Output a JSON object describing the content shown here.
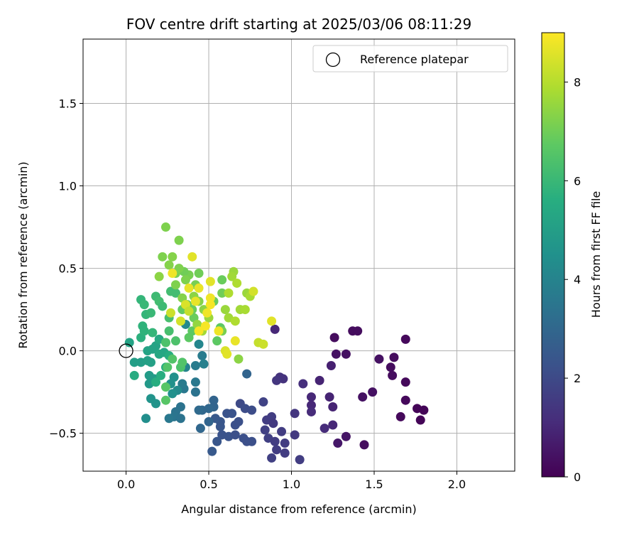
{
  "chart_data": {
    "type": "scatter",
    "title": "FOV centre drift starting at 2025/03/06 08:11:29",
    "xlabel": "Angular distance from reference (arcmin)",
    "ylabel": "Rotation from reference (arcmin)",
    "xlim": [
      -0.26,
      2.35
    ],
    "ylim": [
      -0.73,
      1.89
    ],
    "xticks": [
      0.0,
      0.5,
      1.0,
      1.5,
      2.0
    ],
    "xtick_labels": [
      "0.0",
      "0.5",
      "1.0",
      "1.5",
      "2.0"
    ],
    "yticks": [
      -0.5,
      0.0,
      0.5,
      1.0,
      1.5
    ],
    "ytick_labels": [
      "−0.5",
      "0.0",
      "0.5",
      "1.0",
      "1.5"
    ],
    "grid": true,
    "legend": {
      "position": "top-right",
      "entries": [
        "Reference platepar"
      ]
    },
    "reference_point": {
      "x": 0.0,
      "y": 0.0,
      "label": "Reference platepar"
    },
    "colorbar": {
      "label": "Hours from first FF file",
      "range": [
        0,
        9
      ],
      "ticks": [
        0,
        2,
        4,
        6,
        8
      ],
      "tick_labels": [
        "0",
        "2",
        "4",
        "6",
        "8"
      ],
      "colormap": "viridis"
    },
    "points": [
      {
        "x": 1.26,
        "y": 0.08,
        "t": 0.3
      },
      {
        "x": 1.37,
        "y": 0.12,
        "t": 0.3
      },
      {
        "x": 1.4,
        "y": 0.12,
        "t": 0.3
      },
      {
        "x": 1.69,
        "y": 0.07,
        "t": 0.2
      },
      {
        "x": 1.27,
        "y": -0.02,
        "t": 0.4
      },
      {
        "x": 1.33,
        "y": -0.02,
        "t": 0.4
      },
      {
        "x": 1.53,
        "y": -0.05,
        "t": 0.4
      },
      {
        "x": 1.62,
        "y": -0.04,
        "t": 0.3
      },
      {
        "x": 1.6,
        "y": -0.1,
        "t": 0.3
      },
      {
        "x": 1.61,
        "y": -0.15,
        "t": 0.3
      },
      {
        "x": 1.69,
        "y": -0.19,
        "t": 0.2
      },
      {
        "x": 1.49,
        "y": -0.25,
        "t": 0.4
      },
      {
        "x": 1.43,
        "y": -0.28,
        "t": 0.4
      },
      {
        "x": 1.69,
        "y": -0.3,
        "t": 0.2
      },
      {
        "x": 1.76,
        "y": -0.35,
        "t": 0.1
      },
      {
        "x": 1.8,
        "y": -0.36,
        "t": 0.1
      },
      {
        "x": 1.66,
        "y": -0.4,
        "t": 0.2
      },
      {
        "x": 1.78,
        "y": -0.42,
        "t": 0.1
      },
      {
        "x": 1.44,
        "y": -0.57,
        "t": 0.3
      },
      {
        "x": 1.33,
        "y": -0.52,
        "t": 0.5
      },
      {
        "x": 1.28,
        "y": -0.56,
        "t": 0.6
      },
      {
        "x": 1.24,
        "y": -0.09,
        "t": 0.8
      },
      {
        "x": 0.9,
        "y": 0.13,
        "t": 1.0
      },
      {
        "x": 1.17,
        "y": -0.18,
        "t": 0.9
      },
      {
        "x": 1.23,
        "y": -0.28,
        "t": 0.9
      },
      {
        "x": 1.25,
        "y": -0.34,
        "t": 0.9
      },
      {
        "x": 1.12,
        "y": -0.28,
        "t": 1.0
      },
      {
        "x": 1.12,
        "y": -0.33,
        "t": 1.0
      },
      {
        "x": 1.12,
        "y": -0.37,
        "t": 1.1
      },
      {
        "x": 1.25,
        "y": -0.45,
        "t": 1.0
      },
      {
        "x": 1.2,
        "y": -0.47,
        "t": 1.1
      },
      {
        "x": 1.07,
        "y": -0.2,
        "t": 1.2
      },
      {
        "x": 0.93,
        "y": -0.16,
        "t": 1.3
      },
      {
        "x": 0.95,
        "y": -0.17,
        "t": 1.3
      },
      {
        "x": 0.91,
        "y": -0.18,
        "t": 1.4
      },
      {
        "x": 1.02,
        "y": -0.38,
        "t": 1.4
      },
      {
        "x": 0.85,
        "y": -0.42,
        "t": 1.6
      },
      {
        "x": 0.88,
        "y": -0.4,
        "t": 1.6
      },
      {
        "x": 0.89,
        "y": -0.44,
        "t": 1.5
      },
      {
        "x": 0.94,
        "y": -0.49,
        "t": 1.6
      },
      {
        "x": 0.84,
        "y": -0.48,
        "t": 1.7
      },
      {
        "x": 0.86,
        "y": -0.53,
        "t": 1.7
      },
      {
        "x": 0.9,
        "y": -0.55,
        "t": 1.6
      },
      {
        "x": 0.91,
        "y": -0.6,
        "t": 1.6
      },
      {
        "x": 0.96,
        "y": -0.56,
        "t": 1.6
      },
      {
        "x": 0.96,
        "y": -0.62,
        "t": 1.6
      },
      {
        "x": 1.02,
        "y": -0.51,
        "t": 1.5
      },
      {
        "x": 0.88,
        "y": -0.65,
        "t": 1.7
      },
      {
        "x": 1.05,
        "y": -0.66,
        "t": 1.6
      },
      {
        "x": 0.83,
        "y": -0.31,
        "t": 1.8
      },
      {
        "x": 0.69,
        "y": -0.32,
        "t": 2.0
      },
      {
        "x": 0.72,
        "y": -0.35,
        "t": 2.1
      },
      {
        "x": 0.76,
        "y": -0.36,
        "t": 2.1
      },
      {
        "x": 0.64,
        "y": -0.38,
        "t": 2.3
      },
      {
        "x": 0.61,
        "y": -0.38,
        "t": 2.3
      },
      {
        "x": 0.66,
        "y": -0.45,
        "t": 2.2
      },
      {
        "x": 0.68,
        "y": -0.43,
        "t": 2.2
      },
      {
        "x": 0.57,
        "y": -0.43,
        "t": 2.4
      },
      {
        "x": 0.57,
        "y": -0.46,
        "t": 2.4
      },
      {
        "x": 0.54,
        "y": -0.41,
        "t": 2.5
      },
      {
        "x": 0.58,
        "y": -0.51,
        "t": 2.3
      },
      {
        "x": 0.62,
        "y": -0.52,
        "t": 2.3
      },
      {
        "x": 0.66,
        "y": -0.51,
        "t": 2.2
      },
      {
        "x": 0.71,
        "y": -0.53,
        "t": 2.2
      },
      {
        "x": 0.73,
        "y": -0.55,
        "t": 2.2
      },
      {
        "x": 0.76,
        "y": -0.55,
        "t": 2.2
      },
      {
        "x": 0.55,
        "y": -0.55,
        "t": 2.4
      },
      {
        "x": 0.52,
        "y": -0.61,
        "t": 2.5
      },
      {
        "x": 0.73,
        "y": -0.14,
        "t": 2.9
      },
      {
        "x": 0.53,
        "y": -0.3,
        "t": 2.9
      },
      {
        "x": 0.53,
        "y": -0.34,
        "t": 2.9
      },
      {
        "x": 0.46,
        "y": -0.36,
        "t": 3.0
      },
      {
        "x": 0.5,
        "y": -0.35,
        "t": 3.0
      },
      {
        "x": 0.44,
        "y": -0.36,
        "t": 3.1
      },
      {
        "x": 0.5,
        "y": -0.43,
        "t": 2.9
      },
      {
        "x": 0.45,
        "y": -0.47,
        "t": 3.0
      },
      {
        "x": 0.33,
        "y": -0.34,
        "t": 3.4
      },
      {
        "x": 0.3,
        "y": -0.37,
        "t": 3.4
      },
      {
        "x": 0.29,
        "y": -0.4,
        "t": 3.5
      },
      {
        "x": 0.33,
        "y": -0.41,
        "t": 3.4
      },
      {
        "x": 0.26,
        "y": -0.41,
        "t": 3.6
      },
      {
        "x": 0.42,
        "y": -0.25,
        "t": 3.4
      },
      {
        "x": 0.35,
        "y": -0.23,
        "t": 3.6
      },
      {
        "x": 0.34,
        "y": -0.2,
        "t": 3.7
      },
      {
        "x": 0.42,
        "y": -0.19,
        "t": 3.6
      },
      {
        "x": 0.42,
        "y": -0.09,
        "t": 3.7
      },
      {
        "x": 0.46,
        "y": -0.03,
        "t": 3.7
      },
      {
        "x": 0.47,
        "y": -0.08,
        "t": 3.9
      },
      {
        "x": 0.36,
        "y": -0.1,
        "t": 4.0
      },
      {
        "x": 0.44,
        "y": 0.04,
        "t": 4.1
      },
      {
        "x": 0.36,
        "y": 0.16,
        "t": 4.2
      },
      {
        "x": 0.29,
        "y": -0.16,
        "t": 4.5
      },
      {
        "x": 0.31,
        "y": -0.24,
        "t": 4.3
      },
      {
        "x": 0.27,
        "y": -0.2,
        "t": 4.5
      },
      {
        "x": 0.28,
        "y": -0.26,
        "t": 4.5
      },
      {
        "x": 0.12,
        "y": -0.41,
        "t": 4.4
      },
      {
        "x": 0.15,
        "y": -0.29,
        "t": 4.6
      },
      {
        "x": 0.18,
        "y": -0.32,
        "t": 4.6
      },
      {
        "x": 0.14,
        "y": -0.2,
        "t": 4.8
      },
      {
        "x": 0.17,
        "y": -0.17,
        "t": 4.9
      },
      {
        "x": 0.14,
        "y": -0.15,
        "t": 4.9
      },
      {
        "x": 0.05,
        "y": -0.07,
        "t": 5.0
      },
      {
        "x": 0.09,
        "y": -0.07,
        "t": 5.0
      },
      {
        "x": 0.13,
        "y": -0.06,
        "t": 5.1
      },
      {
        "x": 0.15,
        "y": -0.07,
        "t": 5.1
      },
      {
        "x": 0.13,
        "y": 0.0,
        "t": 5.2
      },
      {
        "x": 0.16,
        "y": 0.01,
        "t": 5.2
      },
      {
        "x": 0.18,
        "y": 0.03,
        "t": 5.2
      },
      {
        "x": 0.2,
        "y": -0.02,
        "t": 5.3
      },
      {
        "x": 0.23,
        "y": -0.01,
        "t": 5.3
      },
      {
        "x": 0.2,
        "y": 0.07,
        "t": 5.4
      },
      {
        "x": 0.02,
        "y": 0.05,
        "t": 5.2
      },
      {
        "x": 0.05,
        "y": -0.15,
        "t": 5.5
      },
      {
        "x": 0.18,
        "y": -0.19,
        "t": 5.6
      },
      {
        "x": 0.21,
        "y": -0.15,
        "t": 5.6
      },
      {
        "x": 0.24,
        "y": -0.1,
        "t": 5.6
      },
      {
        "x": 0.26,
        "y": -0.03,
        "t": 5.6
      },
      {
        "x": 0.09,
        "y": 0.08,
        "t": 5.7
      },
      {
        "x": 0.11,
        "y": 0.12,
        "t": 5.8
      },
      {
        "x": 0.1,
        "y": 0.15,
        "t": 5.8
      },
      {
        "x": 0.16,
        "y": 0.11,
        "t": 5.9
      },
      {
        "x": 0.12,
        "y": 0.22,
        "t": 5.9
      },
      {
        "x": 0.15,
        "y": 0.23,
        "t": 6.0
      },
      {
        "x": 0.09,
        "y": 0.31,
        "t": 5.9
      },
      {
        "x": 0.11,
        "y": 0.28,
        "t": 6.0
      },
      {
        "x": 0.18,
        "y": 0.33,
        "t": 6.1
      },
      {
        "x": 0.2,
        "y": 0.3,
        "t": 6.2
      },
      {
        "x": 0.22,
        "y": 0.27,
        "t": 6.1
      },
      {
        "x": 0.27,
        "y": 0.36,
        "t": 6.2
      },
      {
        "x": 0.3,
        "y": 0.35,
        "t": 6.2
      },
      {
        "x": 0.26,
        "y": 0.2,
        "t": 6.3
      },
      {
        "x": 0.26,
        "y": 0.12,
        "t": 6.3
      },
      {
        "x": 0.24,
        "y": 0.05,
        "t": 6.4
      },
      {
        "x": 0.3,
        "y": 0.06,
        "t": 6.4
      },
      {
        "x": 0.28,
        "y": -0.05,
        "t": 6.5
      },
      {
        "x": 0.25,
        "y": -0.1,
        "t": 6.5
      },
      {
        "x": 0.24,
        "y": -0.22,
        "t": 6.6
      },
      {
        "x": 0.24,
        "y": -0.3,
        "t": 6.6
      },
      {
        "x": 0.33,
        "y": -0.1,
        "t": 6.4
      },
      {
        "x": 0.34,
        "y": -0.07,
        "t": 6.5
      },
      {
        "x": 0.38,
        "y": 0.08,
        "t": 6.7
      },
      {
        "x": 0.4,
        "y": 0.12,
        "t": 6.7
      },
      {
        "x": 0.34,
        "y": 0.25,
        "t": 6.8
      },
      {
        "x": 0.37,
        "y": 0.28,
        "t": 6.8
      },
      {
        "x": 0.41,
        "y": 0.2,
        "t": 6.9
      },
      {
        "x": 0.4,
        "y": 0.25,
        "t": 6.9
      },
      {
        "x": 0.55,
        "y": 0.06,
        "t": 6.7
      },
      {
        "x": 0.57,
        "y": 0.14,
        "t": 6.7
      },
      {
        "x": 0.58,
        "y": 0.12,
        "t": 7.1
      },
      {
        "x": 0.68,
        "y": -0.05,
        "t": 7.4
      },
      {
        "x": 0.53,
        "y": 0.3,
        "t": 6.9
      },
      {
        "x": 0.58,
        "y": 0.35,
        "t": 7.0
      },
      {
        "x": 0.58,
        "y": 0.43,
        "t": 6.9
      },
      {
        "x": 0.44,
        "y": 0.47,
        "t": 7.0
      },
      {
        "x": 0.42,
        "y": 0.4,
        "t": 7.1
      },
      {
        "x": 0.38,
        "y": 0.46,
        "t": 7.1
      },
      {
        "x": 0.35,
        "y": 0.48,
        "t": 7.0
      },
      {
        "x": 0.3,
        "y": 0.47,
        "t": 7.1
      },
      {
        "x": 0.32,
        "y": 0.5,
        "t": 7.2
      },
      {
        "x": 0.36,
        "y": 0.43,
        "t": 7.2
      },
      {
        "x": 0.3,
        "y": 0.4,
        "t": 7.2
      },
      {
        "x": 0.26,
        "y": 0.52,
        "t": 7.3
      },
      {
        "x": 0.22,
        "y": 0.57,
        "t": 7.2
      },
      {
        "x": 0.28,
        "y": 0.57,
        "t": 7.3
      },
      {
        "x": 0.2,
        "y": 0.45,
        "t": 7.4
      },
      {
        "x": 0.24,
        "y": 0.75,
        "t": 7.2
      },
      {
        "x": 0.32,
        "y": 0.67,
        "t": 7.2
      },
      {
        "x": 0.34,
        "y": 0.32,
        "t": 7.3
      },
      {
        "x": 0.41,
        "y": 0.33,
        "t": 7.4
      },
      {
        "x": 0.44,
        "y": 0.3,
        "t": 7.3
      },
      {
        "x": 0.47,
        "y": 0.25,
        "t": 7.4
      },
      {
        "x": 0.5,
        "y": 0.2,
        "t": 7.6
      },
      {
        "x": 0.43,
        "y": 0.16,
        "t": 7.5
      },
      {
        "x": 0.46,
        "y": 0.12,
        "t": 7.7
      },
      {
        "x": 0.6,
        "y": 0.25,
        "t": 7.6
      },
      {
        "x": 0.62,
        "y": 0.2,
        "t": 7.7
      },
      {
        "x": 0.66,
        "y": 0.18,
        "t": 7.9
      },
      {
        "x": 0.69,
        "y": 0.25,
        "t": 7.7
      },
      {
        "x": 0.72,
        "y": 0.25,
        "t": 7.8
      },
      {
        "x": 0.73,
        "y": 0.35,
        "t": 7.6
      },
      {
        "x": 0.75,
        "y": 0.33,
        "t": 7.8
      },
      {
        "x": 0.65,
        "y": 0.48,
        "t": 7.6
      },
      {
        "x": 0.64,
        "y": 0.45,
        "t": 7.7
      },
      {
        "x": 0.67,
        "y": 0.41,
        "t": 7.9
      },
      {
        "x": 0.62,
        "y": 0.35,
        "t": 7.9
      },
      {
        "x": 0.8,
        "y": 0.05,
        "t": 8.2
      },
      {
        "x": 0.83,
        "y": 0.04,
        "t": 8.3
      },
      {
        "x": 0.6,
        "y": 0.0,
        "t": 8.5
      },
      {
        "x": 0.61,
        "y": -0.02,
        "t": 8.6
      },
      {
        "x": 0.66,
        "y": 0.06,
        "t": 8.7
      },
      {
        "x": 0.88,
        "y": 0.18,
        "t": 8.6
      },
      {
        "x": 0.77,
        "y": 0.36,
        "t": 8.4
      },
      {
        "x": 0.4,
        "y": 0.57,
        "t": 8.6
      },
      {
        "x": 0.28,
        "y": 0.47,
        "t": 8.8
      },
      {
        "x": 0.38,
        "y": 0.38,
        "t": 8.7
      },
      {
        "x": 0.44,
        "y": 0.38,
        "t": 8.7
      },
      {
        "x": 0.51,
        "y": 0.42,
        "t": 8.6
      },
      {
        "x": 0.42,
        "y": 0.3,
        "t": 8.7
      },
      {
        "x": 0.51,
        "y": 0.32,
        "t": 8.8
      },
      {
        "x": 0.51,
        "y": 0.28,
        "t": 8.9
      },
      {
        "x": 0.49,
        "y": 0.23,
        "t": 8.8
      },
      {
        "x": 0.44,
        "y": 0.12,
        "t": 8.9
      },
      {
        "x": 0.48,
        "y": 0.15,
        "t": 8.9
      },
      {
        "x": 0.56,
        "y": 0.12,
        "t": 8.8
      },
      {
        "x": 0.36,
        "y": 0.28,
        "t": 8.5
      },
      {
        "x": 0.33,
        "y": 0.18,
        "t": 8.4
      },
      {
        "x": 0.27,
        "y": 0.23,
        "t": 8.3
      },
      {
        "x": 0.38,
        "y": 0.24,
        "t": 8.2
      }
    ]
  }
}
